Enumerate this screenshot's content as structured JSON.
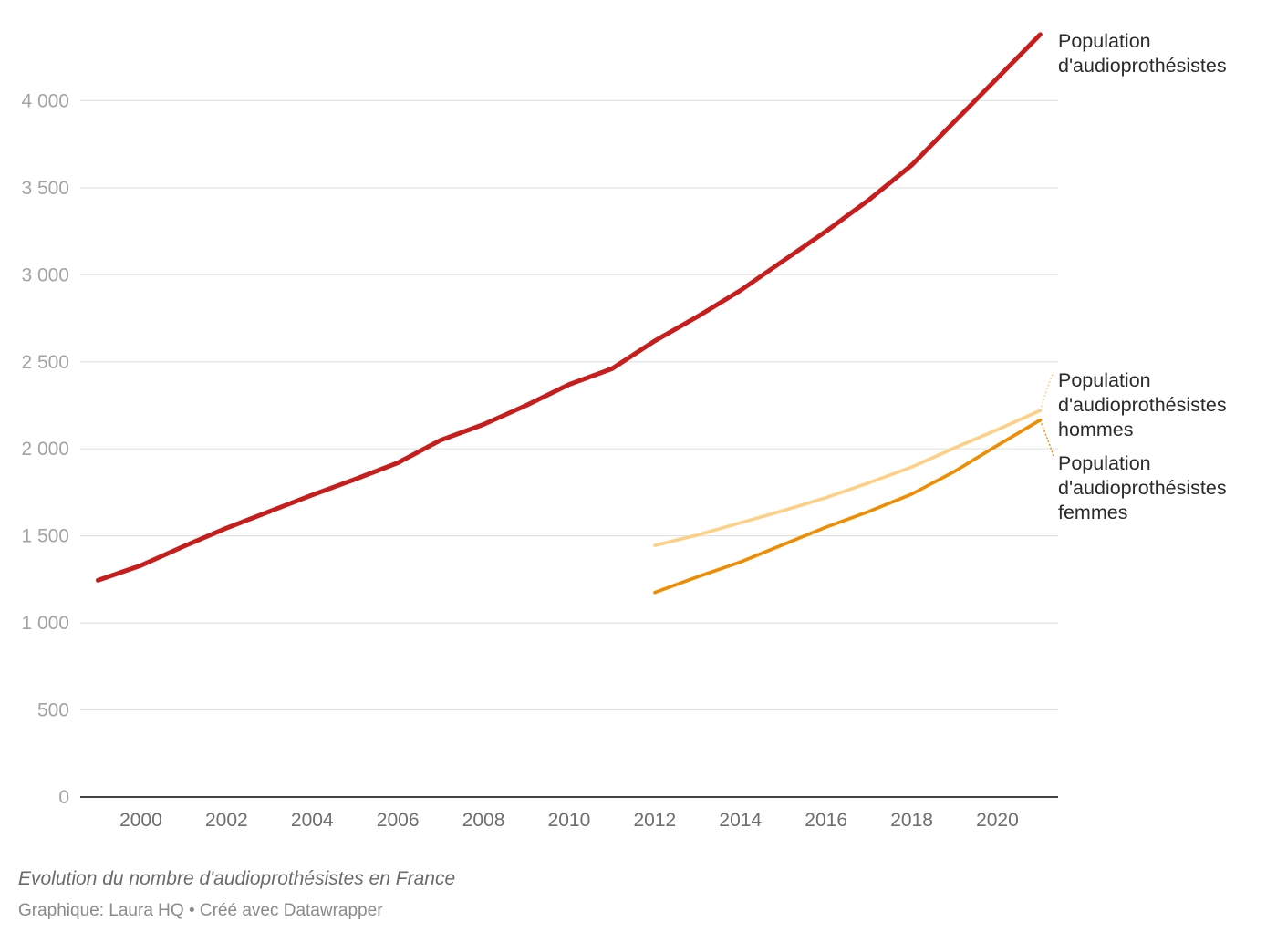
{
  "chart_data": {
    "type": "line",
    "title": "",
    "xlabel": "",
    "ylabel": "",
    "xlim": [
      1999,
      2021
    ],
    "ylim": [
      0,
      4000
    ],
    "x_ticks": [
      2000,
      2002,
      2004,
      2006,
      2008,
      2010,
      2012,
      2014,
      2016,
      2018,
      2020
    ],
    "y_ticks": [
      0,
      500,
      1000,
      1500,
      2000,
      2500,
      3000,
      3500,
      4000
    ],
    "y_tick_labels": [
      "0",
      "500",
      "1 000",
      "1 500",
      "2 000",
      "2 500",
      "3 000",
      "3 500",
      "4 000"
    ],
    "grid": true,
    "legend": "direct labels at right end of lines",
    "series": [
      {
        "name": "Population d'audioprothésistes",
        "label_lines": [
          "Population",
          "d'audioprothésistes"
        ],
        "color": "#c71e1d",
        "x": [
          1999,
          2000,
          2001,
          2002,
          2003,
          2004,
          2005,
          2006,
          2007,
          2008,
          2009,
          2010,
          2011,
          2012,
          2013,
          2014,
          2015,
          2016,
          2017,
          2018,
          2019,
          2020,
          2021
        ],
        "values": [
          1245,
          1330,
          1440,
          1545,
          1640,
          1735,
          1825,
          1920,
          2050,
          2140,
          2250,
          2370,
          2460,
          2620,
          2760,
          2910,
          3080,
          3250,
          3430,
          3630,
          3880,
          4130,
          4380
        ]
      },
      {
        "name": "Population d'audioprothésistes hommes",
        "label_lines": [
          "Population",
          "d'audioprothésistes",
          "hommes"
        ],
        "color": "#fdd086",
        "x": [
          2012,
          2013,
          2014,
          2015,
          2016,
          2017,
          2018,
          2019,
          2020,
          2021
        ],
        "values": [
          1445,
          1505,
          1575,
          1645,
          1720,
          1805,
          1895,
          2005,
          2110,
          2220
        ]
      },
      {
        "name": "Population d'audioprothésistes femmes",
        "label_lines": [
          "Population",
          "d'audioprothésistes",
          "femmes"
        ],
        "color": "#f08c00",
        "x": [
          2012,
          2013,
          2014,
          2015,
          2016,
          2017,
          2018,
          2019,
          2020,
          2021
        ],
        "values": [
          1175,
          1265,
          1350,
          1450,
          1550,
          1640,
          1740,
          1870,
          2020,
          2165
        ]
      }
    ]
  },
  "footer": {
    "caption": "Evolution du nombre d'audioprothésistes en France",
    "credit": "Graphique: Laura HQ • Créé avec Datawrapper"
  }
}
